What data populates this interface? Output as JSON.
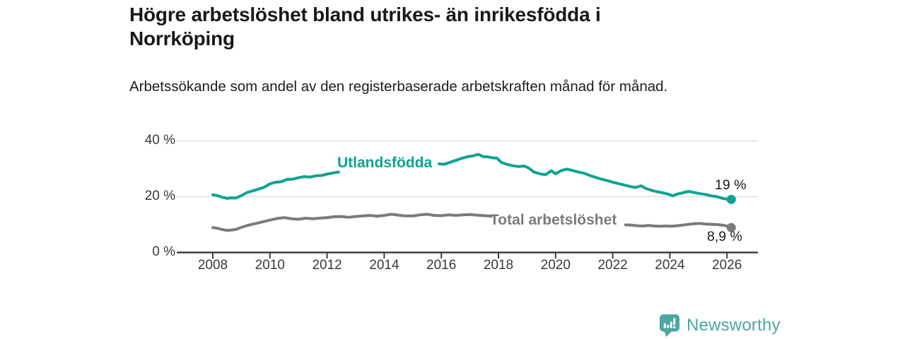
{
  "header": {
    "title": "Högre arbetslöshet bland utrikes- än inrikesfödda i Norrköping",
    "subtitle": "Arbetssökande som andel av den registerbaserade arbetskraften månad för månad."
  },
  "chart_data": {
    "type": "line",
    "title": "Högre arbetslöshet bland utrikes- än inrikesfödda i Norrköping",
    "subtitle": "Arbetssökande som andel av den registerbaserade arbetskraften månad för månad.",
    "unit": "%",
    "xlim": [
      2007.9,
      2027.0
    ],
    "ylim": [
      0,
      40
    ],
    "grid": "horizontal",
    "legend_position": "inline-on-lines",
    "x_ticks": [
      "2008",
      "2010",
      "2012",
      "2014",
      "2016",
      "2018",
      "2020",
      "2022",
      "2024",
      "2026"
    ],
    "y_ticks": [
      {
        "value": 0,
        "label": "0 %"
      },
      {
        "value": 20,
        "label": "20 %"
      },
      {
        "value": 40,
        "label": "40 %"
      }
    ],
    "series": [
      {
        "name": "Utlandsfödda",
        "color": "#0fa291",
        "end_label": "19 %",
        "end_value": 19.0,
        "segments": [
          [
            [
              2008.0,
              20.7
            ],
            [
              2008.15,
              20.4
            ],
            [
              2008.3,
              19.9
            ],
            [
              2008.5,
              19.4
            ],
            [
              2008.65,
              19.6
            ],
            [
              2008.8,
              19.5
            ],
            [
              2009.0,
              20.4
            ],
            [
              2009.2,
              21.5
            ],
            [
              2009.4,
              22.1
            ],
            [
              2009.6,
              22.7
            ],
            [
              2009.8,
              23.4
            ],
            [
              2010.0,
              24.6
            ],
            [
              2010.2,
              25.2
            ],
            [
              2010.4,
              25.4
            ],
            [
              2010.6,
              26.2
            ],
            [
              2010.8,
              26.3
            ],
            [
              2011.0,
              26.8
            ],
            [
              2011.2,
              27.2
            ],
            [
              2011.4,
              27.0
            ],
            [
              2011.6,
              27.5
            ],
            [
              2011.8,
              27.6
            ],
            [
              2012.0,
              28.1
            ],
            [
              2012.2,
              28.5
            ],
            [
              2012.4,
              28.8
            ]
          ],
          [
            [
              2015.92,
              31.8
            ],
            [
              2016.1,
              31.6
            ],
            [
              2016.3,
              32.3
            ],
            [
              2016.5,
              33.0
            ],
            [
              2016.7,
              33.7
            ],
            [
              2016.9,
              34.3
            ],
            [
              2017.1,
              34.6
            ],
            [
              2017.3,
              35.2
            ],
            [
              2017.45,
              34.4
            ],
            [
              2017.6,
              34.3
            ],
            [
              2017.75,
              34.0
            ],
            [
              2017.95,
              33.8
            ],
            [
              2018.1,
              32.3
            ],
            [
              2018.3,
              31.6
            ],
            [
              2018.5,
              31.1
            ],
            [
              2018.7,
              30.8
            ],
            [
              2018.9,
              31.0
            ],
            [
              2019.05,
              30.3
            ],
            [
              2019.25,
              28.8
            ],
            [
              2019.45,
              28.2
            ],
            [
              2019.65,
              27.9
            ],
            [
              2019.85,
              29.3
            ],
            [
              2020.0,
              28.2
            ],
            [
              2020.2,
              29.4
            ],
            [
              2020.4,
              29.9
            ],
            [
              2020.6,
              29.4
            ],
            [
              2020.8,
              28.8
            ],
            [
              2021.0,
              28.4
            ],
            [
              2021.2,
              27.6
            ],
            [
              2021.4,
              26.9
            ],
            [
              2021.6,
              26.3
            ],
            [
              2021.8,
              25.8
            ],
            [
              2022.0,
              25.2
            ],
            [
              2022.2,
              24.7
            ],
            [
              2022.4,
              24.2
            ],
            [
              2022.6,
              23.7
            ],
            [
              2022.8,
              23.3
            ],
            [
              2023.0,
              23.9
            ],
            [
              2023.15,
              23.0
            ],
            [
              2023.35,
              22.3
            ],
            [
              2023.55,
              21.8
            ],
            [
              2023.75,
              21.4
            ],
            [
              2023.95,
              20.9
            ],
            [
              2024.1,
              20.3
            ],
            [
              2024.25,
              20.9
            ],
            [
              2024.45,
              21.4
            ],
            [
              2024.65,
              21.9
            ],
            [
              2024.85,
              21.5
            ],
            [
              2025.05,
              21.1
            ],
            [
              2025.25,
              20.8
            ],
            [
              2025.45,
              20.3
            ],
            [
              2025.65,
              20.0
            ],
            [
              2025.85,
              19.4
            ],
            [
              2026.0,
              19.1
            ],
            [
              2026.15,
              19.0
            ]
          ]
        ]
      },
      {
        "name": "Total arbetslöshet",
        "color": "#7b7b7b",
        "end_label": "8,9 %",
        "end_value": 8.9,
        "segments": [
          [
            [
              2008.0,
              8.9
            ],
            [
              2008.15,
              8.7
            ],
            [
              2008.3,
              8.3
            ],
            [
              2008.5,
              7.9
            ],
            [
              2008.7,
              8.1
            ],
            [
              2008.85,
              8.4
            ],
            [
              2009.0,
              9.0
            ],
            [
              2009.25,
              9.8
            ],
            [
              2009.5,
              10.4
            ],
            [
              2009.75,
              11.0
            ],
            [
              2010.0,
              11.6
            ],
            [
              2010.25,
              12.2
            ],
            [
              2010.5,
              12.5
            ],
            [
              2010.75,
              12.1
            ],
            [
              2011.0,
              11.9
            ],
            [
              2011.25,
              12.3
            ],
            [
              2011.5,
              12.1
            ],
            [
              2011.75,
              12.3
            ],
            [
              2012.0,
              12.5
            ],
            [
              2012.25,
              12.8
            ],
            [
              2012.5,
              12.9
            ],
            [
              2012.75,
              12.6
            ],
            [
              2013.0,
              12.9
            ],
            [
              2013.25,
              13.1
            ],
            [
              2013.5,
              13.3
            ],
            [
              2013.75,
              13.0
            ],
            [
              2014.0,
              13.3
            ],
            [
              2014.25,
              13.7
            ],
            [
              2014.5,
              13.4
            ],
            [
              2014.75,
              13.1
            ],
            [
              2015.0,
              13.1
            ],
            [
              2015.25,
              13.5
            ],
            [
              2015.5,
              13.7
            ],
            [
              2015.75,
              13.3
            ],
            [
              2016.0,
              13.2
            ],
            [
              2016.25,
              13.5
            ],
            [
              2016.5,
              13.3
            ],
            [
              2016.75,
              13.5
            ],
            [
              2017.0,
              13.6
            ],
            [
              2017.25,
              13.4
            ],
            [
              2017.5,
              13.2
            ],
            [
              2017.75,
              13.0
            ]
          ],
          [
            [
              2022.45,
              9.9
            ],
            [
              2022.65,
              9.8
            ],
            [
              2022.85,
              9.6
            ],
            [
              2023.05,
              9.5
            ],
            [
              2023.25,
              9.7
            ],
            [
              2023.45,
              9.5
            ],
            [
              2023.65,
              9.4
            ],
            [
              2023.85,
              9.5
            ],
            [
              2024.05,
              9.4
            ],
            [
              2024.25,
              9.6
            ],
            [
              2024.45,
              9.8
            ],
            [
              2024.65,
              10.1
            ],
            [
              2024.85,
              10.3
            ],
            [
              2025.05,
              10.4
            ],
            [
              2025.25,
              10.2
            ],
            [
              2025.45,
              10.1
            ],
            [
              2025.65,
              10.0
            ],
            [
              2025.85,
              9.8
            ],
            [
              2026.0,
              9.5
            ],
            [
              2026.15,
              8.9
            ]
          ]
        ]
      }
    ]
  },
  "footer": {
    "brand": "Newsworthy",
    "brand_color": "#4ca7a0",
    "logo_icon": "speech-bubble-bar-chart-exclamation"
  }
}
